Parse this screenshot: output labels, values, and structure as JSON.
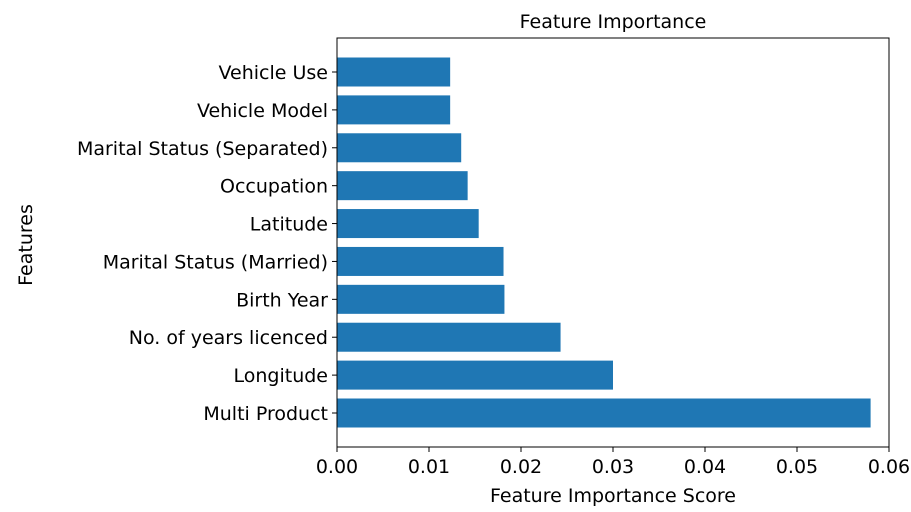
{
  "chart_data": {
    "type": "bar",
    "orientation": "horizontal",
    "title": "Feature Importance",
    "xlabel": "Feature Importance Score",
    "ylabel": "Features",
    "categories": [
      "Multi Product",
      "Longitude",
      "No. of years licenced",
      "Birth Year",
      "Marital Status (Married)",
      "Latitude",
      "Occupation",
      "Marital Status (Separated)",
      "Vehicle Model",
      "Vehicle Use"
    ],
    "values": [
      0.058,
      0.03,
      0.0243,
      0.0182,
      0.0181,
      0.0154,
      0.0142,
      0.0135,
      0.0123,
      0.0123
    ],
    "xlim": [
      0.0,
      0.06
    ],
    "xticks": [
      "0.00",
      "0.01",
      "0.02",
      "0.03",
      "0.04",
      "0.05",
      "0.06"
    ],
    "bar_color": "#1f77b4",
    "grid": false,
    "legend": "none"
  }
}
